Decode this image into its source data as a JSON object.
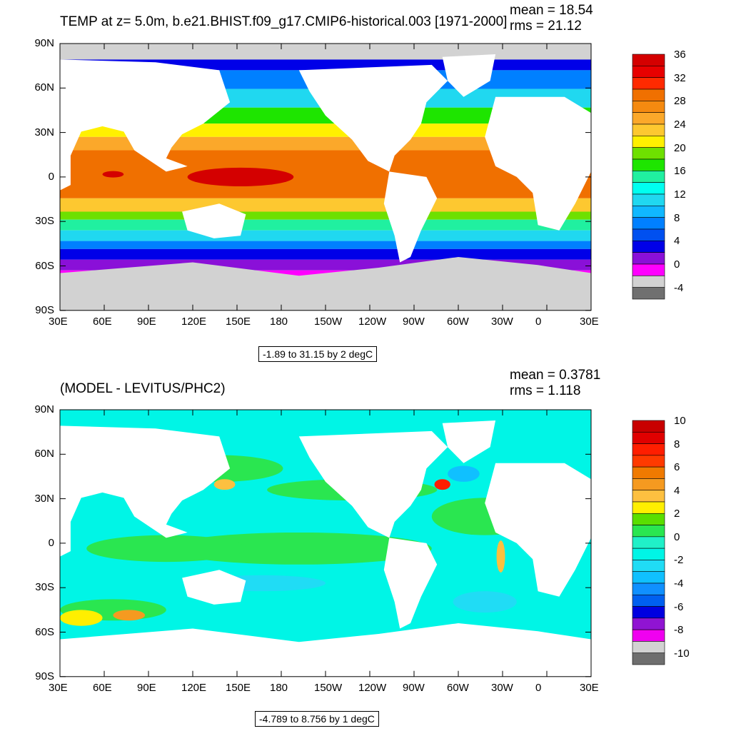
{
  "panels": [
    {
      "title": "TEMP at z=   5.0m, b.e21.BHIST.f09_g17.CMIP6-historical.003 [1971-2000]",
      "mean_text": "mean = 18.54",
      "rms_text": "rms = 21.12",
      "info_text": "-1.89 to 31.15 by 2 degC",
      "colorbar": {
        "labels": [
          "36",
          "32",
          "28",
          "24",
          "20",
          "16",
          "12",
          "8",
          "4",
          "0",
          "-4"
        ],
        "colors": [
          "#d40000",
          "#e80000",
          "#ff2a00",
          "#f07000",
          "#f58a10",
          "#fba82a",
          "#fdc830",
          "#fff000",
          "#6ee000",
          "#1ee500",
          "#20f0a0",
          "#00fff0",
          "#20d8f0",
          "#10b8ff",
          "#0080ff",
          "#0050f0",
          "#0000e8",
          "#8a10d8",
          "#ff00ff",
          "#d2d2d2",
          "#707070"
        ]
      }
    },
    {
      "title": "(MODEL - LEVITUS/PHC2)",
      "mean_text": "mean = 0.3781",
      "rms_text": "rms = 1.118",
      "info_text": "-4.789 to 8.756 by 1 degC",
      "colorbar": {
        "labels": [
          "10",
          "8",
          "6",
          "4",
          "2",
          "0",
          "-2",
          "-4",
          "-6",
          "-8",
          "-10"
        ],
        "colors": [
          "#c80000",
          "#e00000",
          "#ff1e00",
          "#ff3a00",
          "#f07a00",
          "#f59a20",
          "#fdc040",
          "#ffef00",
          "#5ade00",
          "#2ae650",
          "#20f0c8",
          "#00f5e6",
          "#20dcf5",
          "#10c0ff",
          "#1090ff",
          "#0060f0",
          "#0000e0",
          "#9014d2",
          "#f000f0",
          "#d2d2d2",
          "#6e6e6e"
        ]
      }
    }
  ],
  "axes": {
    "lat_labels": [
      "90N",
      "60N",
      "30N",
      "0",
      "30S",
      "60S",
      "90S"
    ],
    "lon_labels": [
      "30E",
      "60E",
      "90E",
      "120E",
      "150E",
      "180",
      "150W",
      "120W",
      "90W",
      "60W",
      "30W",
      "0",
      "30E"
    ]
  }
}
